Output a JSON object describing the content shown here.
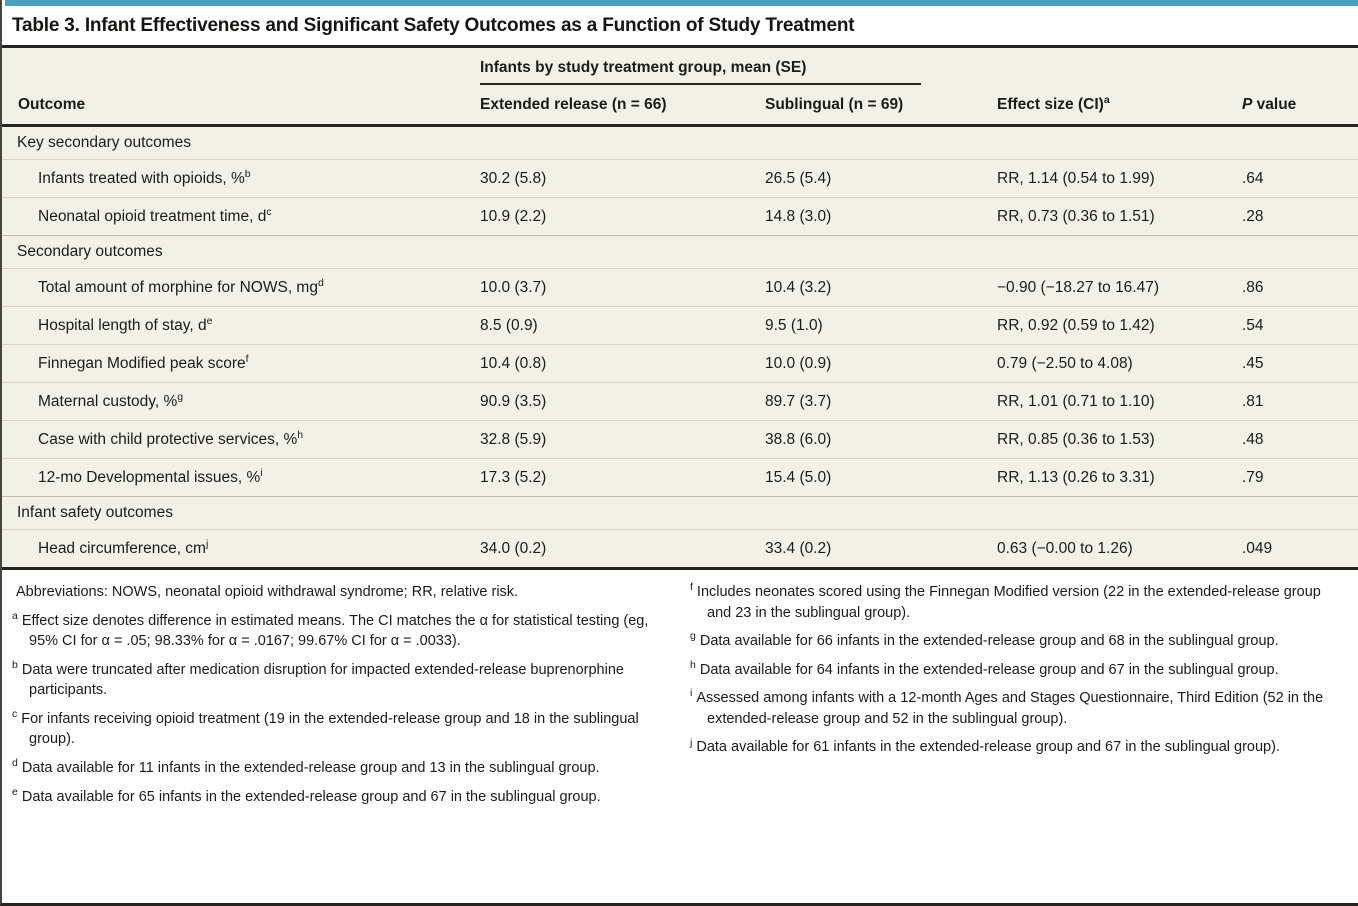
{
  "accent_color": "#4AA0BE",
  "table": {
    "title": "Table 3. Infant Effectiveness and Significant Safety Outcomes as a Function of Study Treatment",
    "header": {
      "outcome": "Outcome",
      "spanner": "Infants by study treatment group, mean (SE)",
      "extended": "Extended release (n = 66)",
      "sublingual": "Sublingual (n = 69)",
      "effect": "Effect size (CI)",
      "effect_marker": "a",
      "p_italic": "P",
      "p_rest": " value"
    },
    "sections": [
      {
        "label": "Key secondary outcomes",
        "rows": [
          {
            "outcome": "Infants treated with opioids, %",
            "marker": "b",
            "extended": "30.2 (5.8)",
            "sublingual": "26.5 (5.4)",
            "effect": "RR, 1.14 (0.54 to 1.99)",
            "p": ".64"
          },
          {
            "outcome": "Neonatal opioid treatment time, d",
            "marker": "c",
            "extended": "10.9 (2.2)",
            "sublingual": "14.8 (3.0)",
            "effect": "RR, 0.73 (0.36 to 1.51)",
            "p": ".28"
          }
        ]
      },
      {
        "label": "Secondary outcomes",
        "rows": [
          {
            "outcome": "Total amount of morphine for NOWS, mg",
            "marker": "d",
            "extended": "10.0 (3.7)",
            "sublingual": "10.4 (3.2)",
            "effect": "−0.90 (−18.27 to 16.47)",
            "p": ".86"
          },
          {
            "outcome": "Hospital length of stay, d",
            "marker": "e",
            "extended": "8.5 (0.9)",
            "sublingual": "9.5 (1.0)",
            "effect": "RR, 0.92 (0.59 to 1.42)",
            "p": ".54"
          },
          {
            "outcome": "Finnegan Modified peak score",
            "marker": "f",
            "extended": "10.4 (0.8)",
            "sublingual": "10.0 (0.9)",
            "effect": "0.79 (−2.50 to 4.08)",
            "p": ".45"
          },
          {
            "outcome": "Maternal custody, %",
            "marker": "g",
            "extended": "90.9 (3.5)",
            "sublingual": "89.7 (3.7)",
            "effect": "RR, 1.01 (0.71 to 1.10)",
            "p": ".81"
          },
          {
            "outcome": "Case with child protective services, %",
            "marker": "h",
            "extended": "32.8 (5.9)",
            "sublingual": "38.8 (6.0)",
            "effect": "RR, 0.85 (0.36 to 1.53)",
            "p": ".48"
          },
          {
            "outcome": "12-mo Developmental issues, %",
            "marker": "i",
            "extended": "17.3 (5.2)",
            "sublingual": "15.4 (5.0)",
            "effect": "RR, 1.13 (0.26 to 3.31)",
            "p": ".79"
          }
        ]
      },
      {
        "label": "Infant safety outcomes",
        "rows": [
          {
            "outcome": "Head circumference, cm",
            "marker": "j",
            "extended": "34.0 (0.2)",
            "sublingual": "33.4 (0.2)",
            "effect": "0.63 (−0.00 to 1.26)",
            "p": ".049"
          }
        ]
      }
    ]
  },
  "footnotes": {
    "left": [
      {
        "marker": "",
        "text": "Abbreviations: NOWS, neonatal opioid withdrawal syndrome; RR, relative risk."
      },
      {
        "marker": "a",
        "text": "Effect size denotes difference in estimated means. The CI matches the α for statistical testing (eg, 95% CI for α = .05; 98.33% for α = .0167; 99.67% CI for α = .0033)."
      },
      {
        "marker": "b",
        "text": "Data were truncated after medication disruption for impacted extended-release buprenorphine participants."
      },
      {
        "marker": "c",
        "text": "For infants receiving opioid treatment (19 in the extended-release group and 18 in the sublingual group)."
      },
      {
        "marker": "d",
        "text": "Data available for 11 infants in the extended-release group and 13 in the sublingual group."
      },
      {
        "marker": "e",
        "text": "Data available for 65 infants in the extended-release group and 67 in the sublingual group."
      }
    ],
    "right": [
      {
        "marker": "f",
        "text": "Includes neonates scored using the Finnegan Modified version (22 in the extended-release group and 23 in the sublingual group)."
      },
      {
        "marker": "g",
        "text": "Data available for 66 infants in the extended-release group and 68 in the sublingual group."
      },
      {
        "marker": "h",
        "text": "Data available for 64 infants in the extended-release group and 67 in the sublingual group."
      },
      {
        "marker": "i",
        "text": "Assessed among infants with a 12-month Ages and Stages Questionnaire, Third Edition (52 in the extended-release group and 52 in the sublingual group)."
      },
      {
        "marker": "j",
        "text": "Data available for 61 infants in the extended-release group and 67 in the sublingual group)."
      }
    ]
  }
}
